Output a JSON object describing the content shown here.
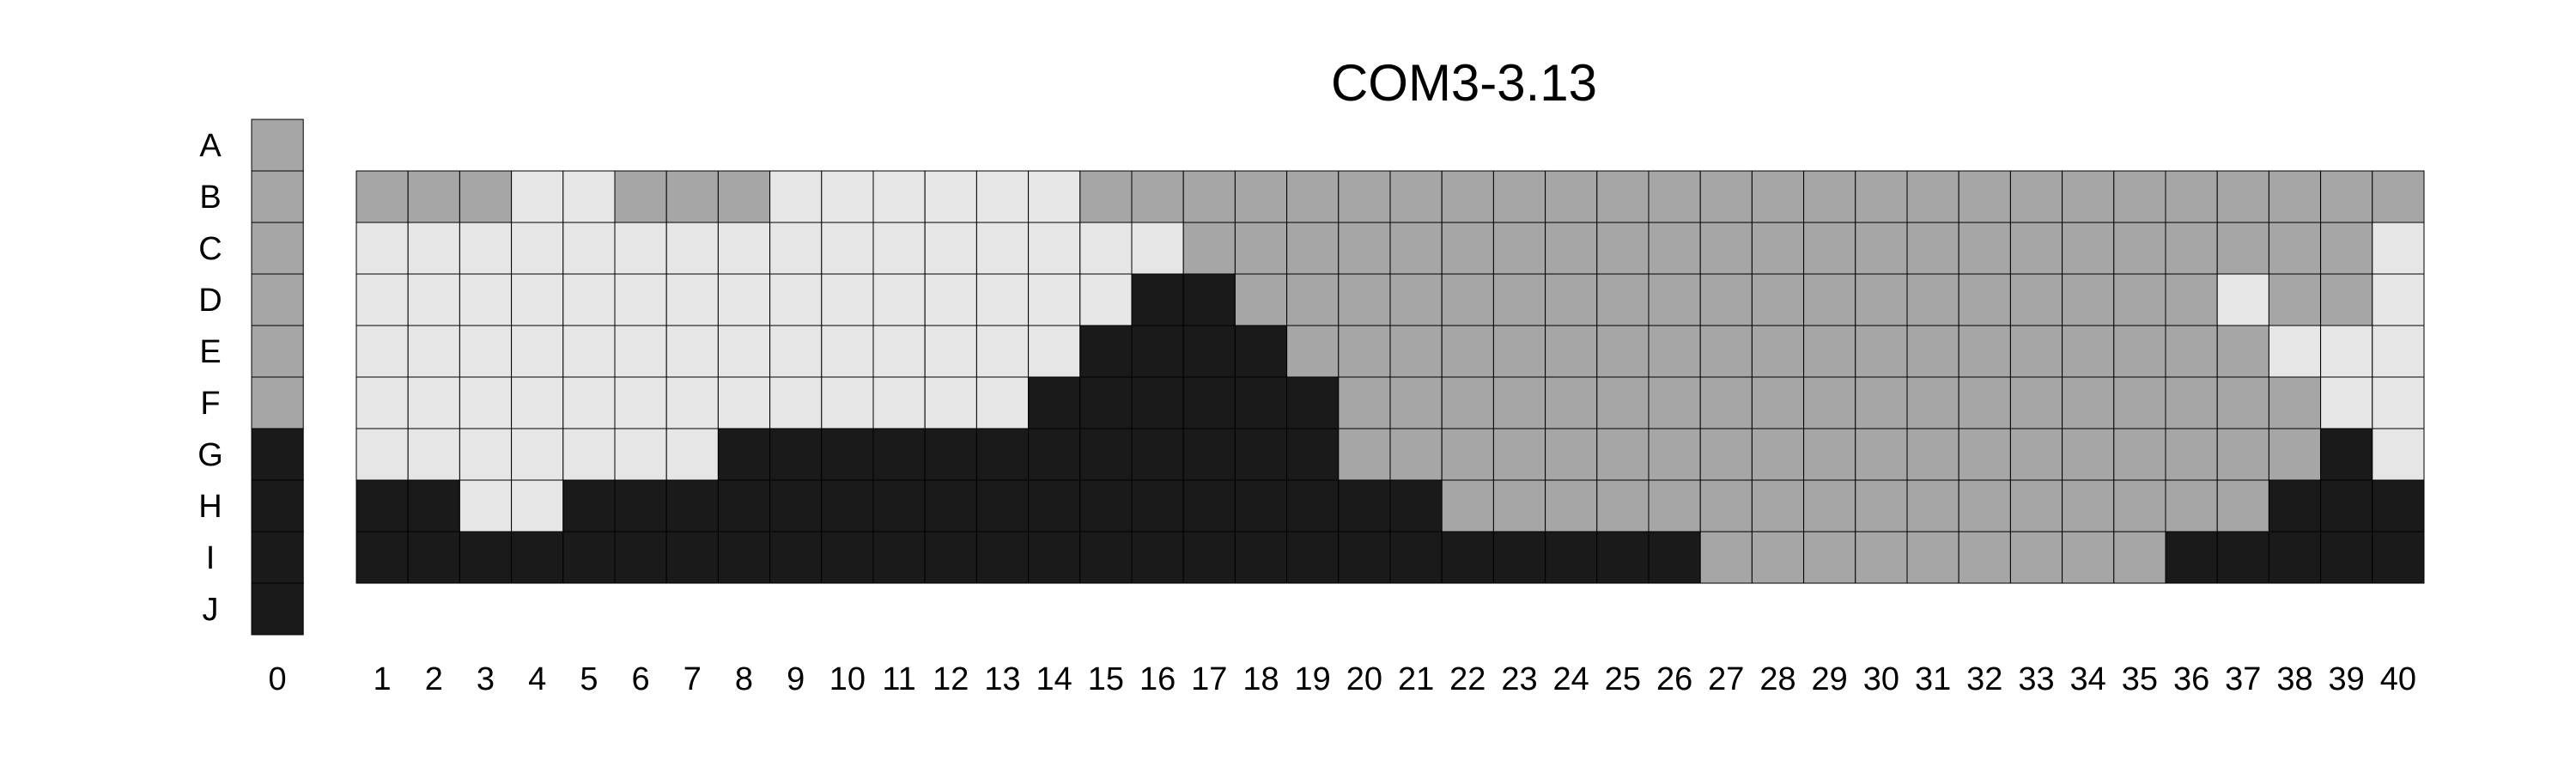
{
  "chart_data": {
    "type": "heatmap",
    "title": "COM3-3.13",
    "row_labels": [
      "A",
      "B",
      "C",
      "D",
      "E",
      "F",
      "G",
      "H",
      "I",
      "J"
    ],
    "reference_column": {
      "label": "0",
      "values": [
        "medium",
        "medium",
        "medium",
        "medium",
        "medium",
        "medium",
        "dark",
        "dark",
        "dark",
        "dark"
      ]
    },
    "column_labels": [
      "1",
      "2",
      "3",
      "4",
      "5",
      "6",
      "7",
      "8",
      "9",
      "10",
      "11",
      "12",
      "13",
      "14",
      "15",
      "16",
      "17",
      "18",
      "19",
      "20",
      "21",
      "22",
      "23",
      "24",
      "25",
      "26",
      "27",
      "28",
      "29",
      "30",
      "31",
      "32",
      "33",
      "34",
      "35",
      "36",
      "37",
      "38",
      "39",
      "40"
    ],
    "matrix_rows": [
      "B",
      "C",
      "D",
      "E",
      "F",
      "G",
      "H",
      "I"
    ],
    "matrix": [
      "MMMLLMMMLLLLLLMMMMMMMMMMMMMMMMMMMMMMMMMM",
      "LLLLLLLLLLLLLLLLMMMMMMMMMMMMMMMMMMMMMMML",
      "LLLLLLLLLLLLLLLDDMMMMMMMMMMMMMMMMMMMLMML",
      "LLLLLLLLLLLLLLDDDDMMMMMMMMMMMMMMMMMMMLLL",
      "LLLLLLLLLLLLLDDDDDDMMMMMMMMMMMMMMMMMMMLL",
      "LLLLLLLDDDDDDDDDDDDMMMMMMMMMMMMMMMMMMMDL",
      "DDLLDDDDDDDDDDDDDDDDDMMMMMMMMMMMMMMMMDDD",
      "DDDDDDDDDDDDDDDDDDDDDDDDDDMMMMMMMMMDDDDD"
    ],
    "legend_codes": {
      "L": "light",
      "M": "medium",
      "D": "dark"
    },
    "colors": {
      "light": "#e6e6e6",
      "medium": "#a6a6a6",
      "dark": "#1a1a1a",
      "grid": "#000000"
    },
    "grid": true,
    "legend": "none"
  }
}
